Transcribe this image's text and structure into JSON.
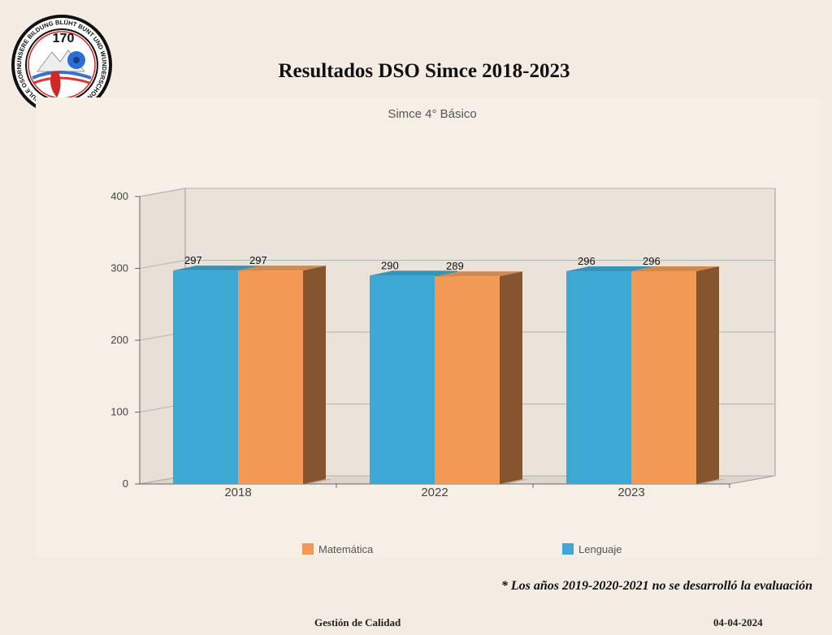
{
  "header": {
    "title": "Resultados DSO Simce 2018-2023",
    "logo": {
      "number": "170",
      "ring_text": "UNSERE BILDUNG BLÜHT BUNT UND WUNDERSCHÖN · DEUTSCHE SCHULE OSORNO"
    }
  },
  "chart_data": {
    "type": "bar",
    "title": "Simce 4° Básico",
    "categories": [
      "2018",
      "2022",
      "2023"
    ],
    "series": [
      {
        "name": "Lenguaje",
        "values": [
          297,
          290,
          296
        ],
        "color": "#3da8d4"
      },
      {
        "name": "Matemática",
        "values": [
          297,
          289,
          296
        ],
        "color": "#f29a55"
      }
    ],
    "ylim": [
      0,
      400
    ],
    "yticks": [
      0,
      100,
      200,
      300,
      400
    ],
    "grid": true,
    "three_d": true,
    "legend_order": [
      "Matemática",
      "Lenguaje"
    ],
    "legend_placement": "bottom"
  },
  "note": "* Los años 2019-2020-2021 no se desarrolló la evaluación",
  "footer": {
    "left": "Gestión de Calidad",
    "right": "04-04-2024"
  }
}
